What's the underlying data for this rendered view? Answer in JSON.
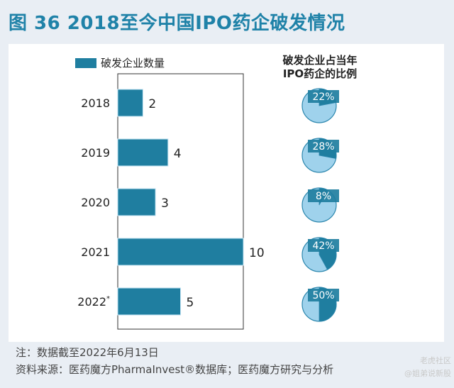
{
  "title": "图 36 2018至今中国IPO药企破发情况",
  "pie_header": [
    "破发企业占当年",
    "IPO药企的比例"
  ],
  "note": "注：数据截至2022年6月13日",
  "source": "资料来源：医药魔方PharmaInvest®数据库；医药魔方研究与分析",
  "watermark": [
    "老虎社区",
    "@姐弟说新股"
  ],
  "colors": {
    "bar": "#1f7ea0",
    "pie_bg": "#9fd2ec",
    "pie_fill": "#1f7ea0",
    "title": "#1f82a8"
  },
  "chart_data": [
    {
      "type": "bar",
      "orientation": "horizontal",
      "categories": [
        "2018",
        "2019",
        "2020",
        "2021",
        "2022*"
      ],
      "series": [
        {
          "name": "破发企业数量",
          "values": [
            2,
            4,
            3,
            10,
            5
          ]
        }
      ],
      "xlim": [
        0,
        10
      ],
      "grid": false,
      "legend": "top-left"
    },
    {
      "type": "pie",
      "categories": [
        "2018",
        "2019",
        "2020",
        "2021",
        "2022*"
      ],
      "values_percent": [
        22,
        28,
        8,
        42,
        50
      ],
      "labels": [
        "22%",
        "28%",
        "8%",
        "42%",
        "50%"
      ]
    }
  ]
}
